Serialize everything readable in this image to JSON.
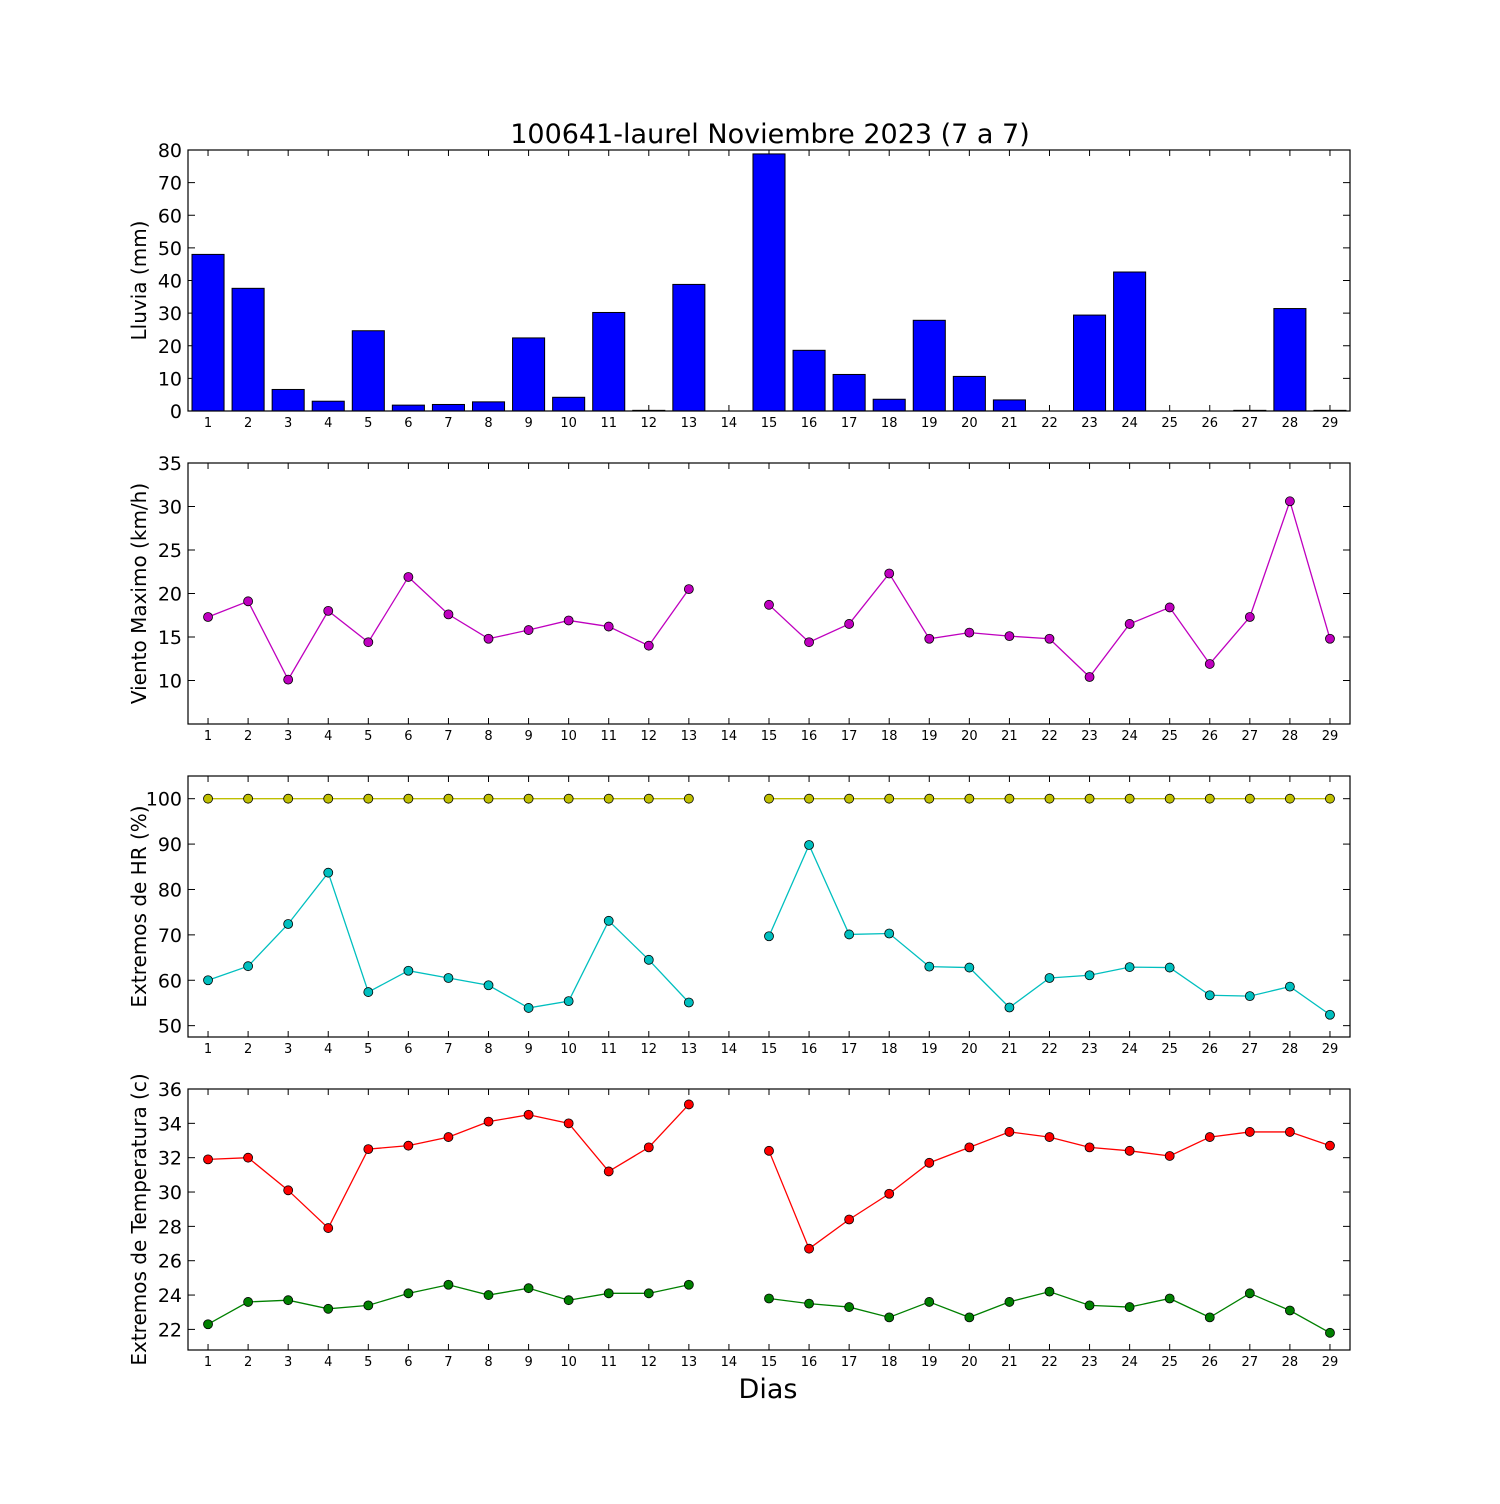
{
  "figure": {
    "title": "100641-laurel Noviembre 2023  (7 a 7)",
    "xlabel": "Dias"
  },
  "chart_data": [
    {
      "type": "bar",
      "ylabel": "Lluvia (mm)",
      "ylim": [
        0,
        80
      ],
      "yticks": [
        0,
        10,
        20,
        30,
        40,
        50,
        60,
        70,
        80
      ],
      "categories": [
        1,
        2,
        3,
        4,
        5,
        6,
        7,
        8,
        9,
        10,
        11,
        12,
        13,
        14,
        15,
        16,
        17,
        18,
        19,
        20,
        21,
        22,
        23,
        24,
        25,
        26,
        27,
        28,
        29
      ],
      "series": [
        {
          "color": "#0000ff",
          "values": [
            48.0,
            37.6,
            6.6,
            3.0,
            24.6,
            1.8,
            2.0,
            2.8,
            22.4,
            4.2,
            30.2,
            0.2,
            38.8,
            null,
            78.8,
            18.6,
            11.2,
            3.6,
            27.8,
            10.6,
            3.4,
            null,
            29.4,
            42.6,
            0.0,
            0.0,
            0.2,
            31.4,
            0.2
          ]
        }
      ]
    },
    {
      "type": "line",
      "ylabel": "Viento Maximo (km/h)",
      "ylim": [
        5,
        35
      ],
      "yticks": [
        10,
        15,
        20,
        25,
        30,
        35
      ],
      "categories": [
        1,
        2,
        3,
        4,
        5,
        6,
        7,
        8,
        9,
        10,
        11,
        12,
        13,
        14,
        15,
        16,
        17,
        18,
        19,
        20,
        21,
        22,
        23,
        24,
        25,
        26,
        27,
        28,
        29
      ],
      "series": [
        {
          "color": "#bf00bf",
          "values": [
            17.3,
            19.1,
            10.1,
            18.0,
            14.4,
            21.9,
            17.6,
            14.8,
            15.8,
            16.9,
            16.2,
            14.0,
            20.5,
            null,
            18.7,
            14.4,
            16.5,
            22.3,
            14.8,
            15.5,
            15.1,
            14.8,
            10.4,
            16.5,
            18.4,
            11.9,
            17.3,
            30.6,
            14.8
          ]
        }
      ]
    },
    {
      "type": "line",
      "ylabel": "Extremos de HR (%)",
      "ylim": [
        47.5,
        105
      ],
      "yticks": [
        50,
        60,
        70,
        80,
        90,
        100
      ],
      "categories": [
        1,
        2,
        3,
        4,
        5,
        6,
        7,
        8,
        9,
        10,
        11,
        12,
        13,
        14,
        15,
        16,
        17,
        18,
        19,
        20,
        21,
        22,
        23,
        24,
        25,
        26,
        27,
        28,
        29
      ],
      "series": [
        {
          "color": "#bfbf00",
          "values": [
            100,
            100,
            100,
            100,
            100,
            100,
            100,
            100,
            100,
            100,
            100,
            100,
            100,
            null,
            100,
            100,
            100,
            100,
            100,
            100,
            100,
            100,
            100,
            100,
            100,
            100,
            100,
            100,
            100
          ]
        },
        {
          "color": "#00bfbf",
          "values": [
            60.0,
            63.1,
            72.4,
            83.7,
            57.4,
            62.1,
            60.5,
            58.9,
            53.9,
            55.4,
            73.1,
            64.5,
            55.1,
            null,
            69.7,
            89.8,
            70.1,
            70.3,
            63.0,
            62.8,
            54.0,
            60.5,
            61.1,
            62.9,
            62.8,
            56.7,
            56.5,
            58.6,
            52.4
          ]
        }
      ]
    },
    {
      "type": "line",
      "ylabel": "Extremos de Temperatura (c)",
      "ylim": [
        20.8,
        36
      ],
      "yticks": [
        22,
        24,
        26,
        28,
        30,
        32,
        34,
        36
      ],
      "categories": [
        1,
        2,
        3,
        4,
        5,
        6,
        7,
        8,
        9,
        10,
        11,
        12,
        13,
        14,
        15,
        16,
        17,
        18,
        19,
        20,
        21,
        22,
        23,
        24,
        25,
        26,
        27,
        28,
        29
      ],
      "series": [
        {
          "color": "#ff0000",
          "values": [
            31.9,
            32.0,
            30.1,
            27.9,
            32.5,
            32.7,
            33.2,
            34.1,
            34.5,
            34.0,
            31.2,
            32.6,
            35.1,
            null,
            32.4,
            26.7,
            28.4,
            29.9,
            31.7,
            32.6,
            33.5,
            33.2,
            32.6,
            32.4,
            32.1,
            33.2,
            33.5,
            33.5,
            32.7
          ]
        },
        {
          "color": "#008000",
          "values": [
            22.3,
            23.6,
            23.7,
            23.2,
            23.4,
            24.1,
            24.6,
            24.0,
            24.4,
            23.7,
            24.1,
            24.1,
            24.6,
            null,
            23.8,
            23.5,
            23.3,
            22.7,
            23.6,
            22.7,
            23.6,
            24.2,
            23.4,
            23.3,
            23.8,
            22.7,
            24.1,
            23.1,
            21.8
          ]
        }
      ]
    }
  ]
}
